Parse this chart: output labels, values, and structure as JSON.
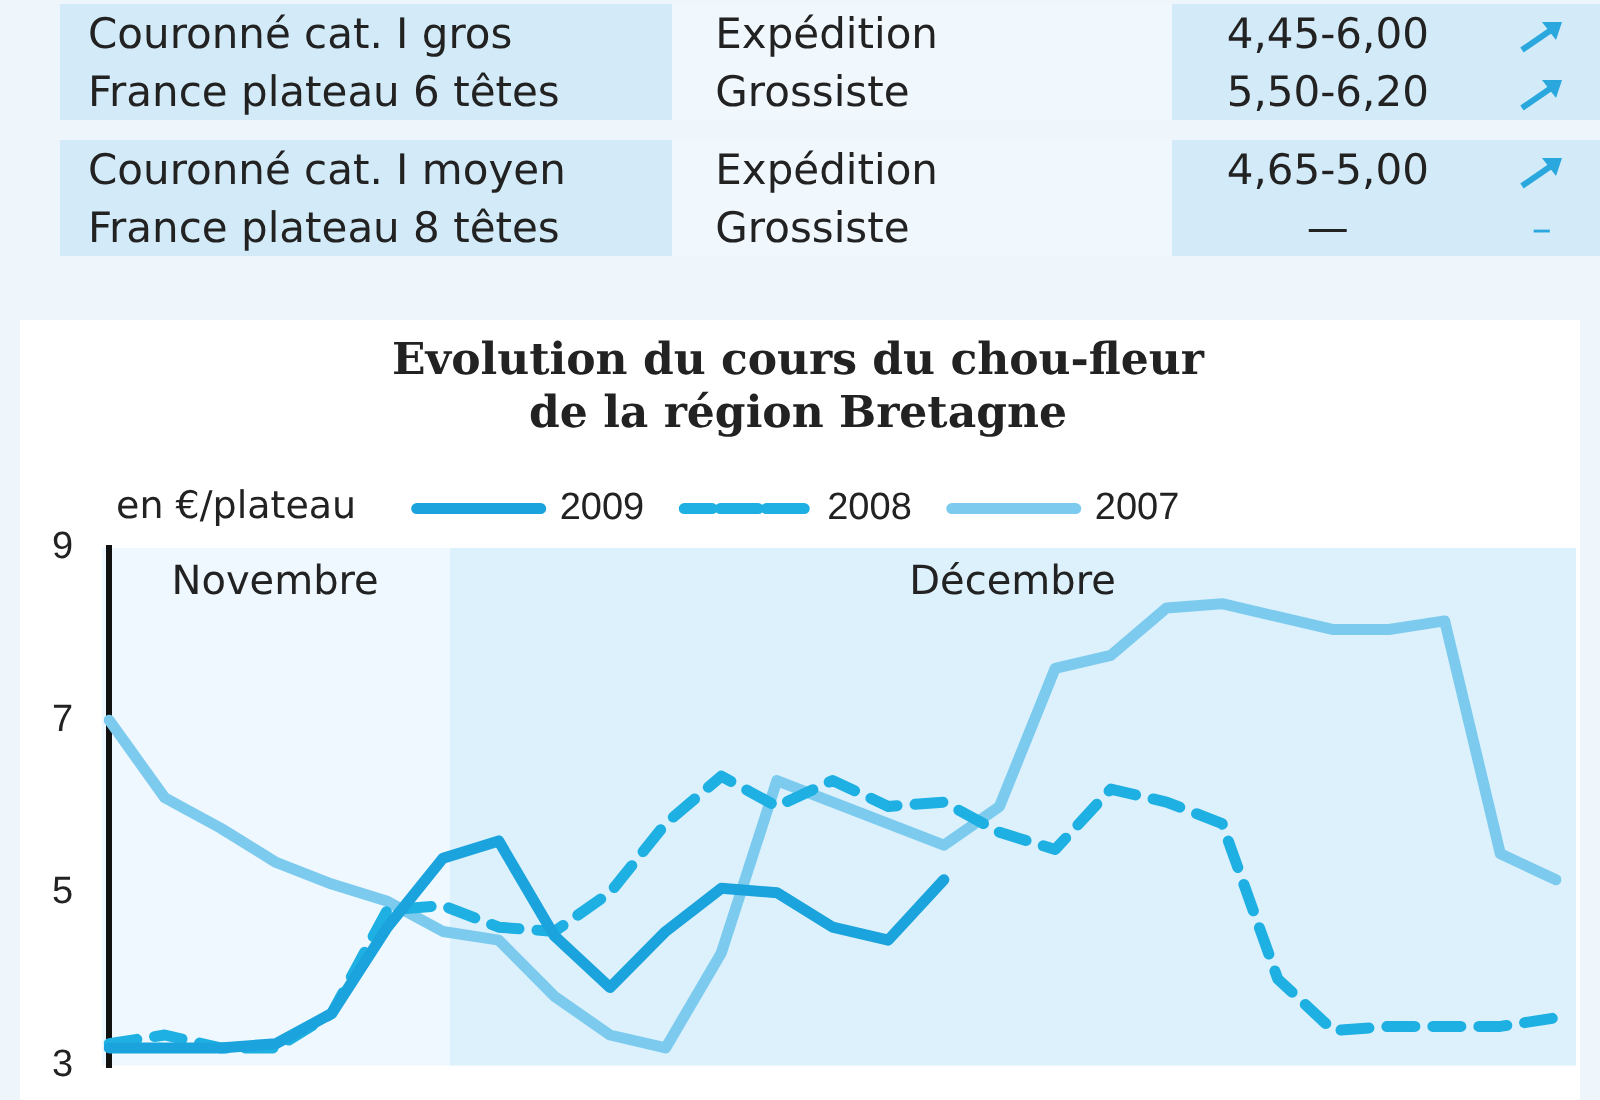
{
  "chart_data": {
    "type": "line",
    "title": "Evolution du cours du chou-fleur\nde la région Bretagne",
    "ylabel": "en €/plateau",
    "categories": [
      null,
      null,
      null,
      null,
      null,
      null,
      null,
      null,
      null,
      null,
      null,
      null,
      null,
      null,
      null,
      null,
      null,
      null,
      null,
      null,
      null,
      null,
      null,
      null,
      null,
      null,
      null
    ],
    "ylim": [
      3,
      9
    ],
    "yticks": [
      3,
      5,
      7,
      9
    ],
    "grid": false,
    "legend": "top",
    "marker": "none",
    "series": [
      {
        "name": "2009",
        "color": "#1aa3dc",
        "line_style": "solid",
        "values": [
          3.2,
          3.2,
          3.2,
          3.25,
          3.6,
          4.6,
          5.4,
          5.6,
          4.5,
          3.9,
          4.55,
          5.05,
          5.0,
          4.6,
          4.45,
          5.15,
          null,
          null,
          null,
          null,
          null,
          null,
          null,
          null,
          null,
          null,
          null
        ]
      },
      {
        "name": "2008",
        "color": "#1eb0e2",
        "line_style": "dashed",
        "values": [
          3.25,
          3.35,
          3.2,
          3.2,
          3.6,
          4.8,
          4.85,
          4.6,
          4.55,
          5.0,
          5.8,
          6.35,
          6.0,
          6.3,
          6.0,
          6.05,
          5.7,
          5.5,
          6.2,
          6.05,
          5.8,
          4.0,
          3.4,
          3.45,
          3.45,
          3.45,
          3.55
        ]
      },
      {
        "name": "2007",
        "color": "#7ccbef",
        "line_style": "solid",
        "values": [
          7.0,
          6.1,
          5.75,
          5.35,
          5.1,
          4.9,
          4.55,
          4.45,
          3.8,
          3.35,
          3.2,
          4.3,
          6.3,
          6.05,
          5.8,
          5.55,
          6.0,
          7.6,
          7.75,
          8.3,
          8.35,
          8.2,
          8.05,
          8.05,
          8.15,
          5.45,
          5.15
        ]
      }
    ],
    "annotations": [
      "Couronné cat. I gros",
      "Expédition",
      "4,45-6,00",
      "France plateau 6 têtes",
      "Grossiste",
      "5,50-6,20",
      "Couronné cat. I moyen",
      "Expédition",
      "4,65-5,00",
      "France plateau 8 têtes",
      "Grossiste",
      "—",
      "–",
      "Novembre",
      "Décembre"
    ]
  }
}
